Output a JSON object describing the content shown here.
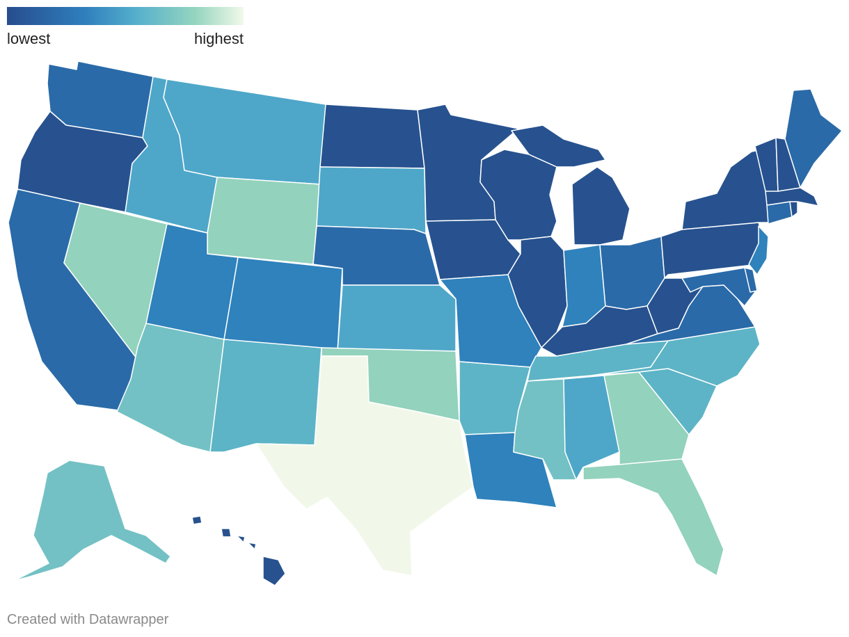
{
  "legend": {
    "low_label": "lowest",
    "high_label": "highest",
    "gradient": [
      "#274d8e",
      "#2f7fbd",
      "#56b0cc",
      "#96d6bf",
      "#f2f9ea"
    ]
  },
  "footer": {
    "credit": "Created with Datawrapper"
  },
  "colors": {
    "level1": "#27528f",
    "level2": "#2a6aa8",
    "level3": "#2f82bc",
    "level4": "#4ea7c9",
    "level5": "#5db4c6",
    "level6": "#73c1c4",
    "level7": "#93d2bc",
    "level8": "#f1f8e9"
  }
}
